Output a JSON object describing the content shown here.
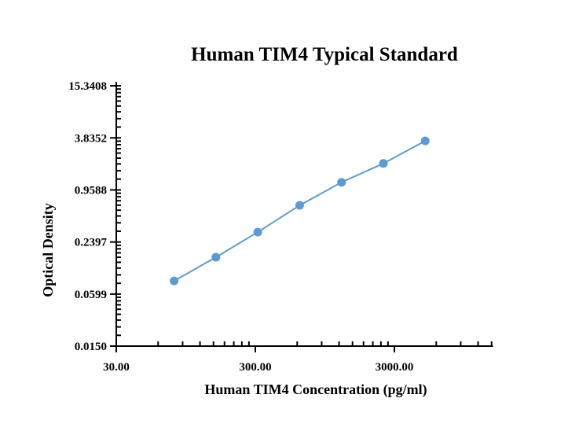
{
  "chart_data": {
    "type": "line",
    "title": "Human TIM4 Typical Standard",
    "xlabel": "Human TIM4 Concentration (pg/ml)",
    "ylabel": "Optical Density",
    "x_scale": "log",
    "y_scale": "log",
    "xlim": [
      30,
      15360
    ],
    "ylim": [
      0.015,
      17
    ],
    "x_ticks": [
      30,
      300,
      3000
    ],
    "x_tick_labels": [
      "30.00",
      "300.00",
      "3000.00"
    ],
    "y_ticks": [
      0.015,
      0.0599,
      0.2397,
      0.9588,
      3.8352,
      15.3408
    ],
    "y_tick_labels": [
      "0.0150",
      "0.0599",
      "0.2397",
      "0.9588",
      "3.8352",
      "15.3408"
    ],
    "grid": false,
    "series": [
      {
        "x": [
          78.125,
          156.25,
          312.5,
          625,
          1250,
          2500,
          5000
        ],
        "y": [
          0.085,
          0.16,
          0.312,
          0.636,
          1.176,
          1.94,
          3.54
        ],
        "color": "#5b9bd5",
        "marker": "circle"
      }
    ]
  }
}
